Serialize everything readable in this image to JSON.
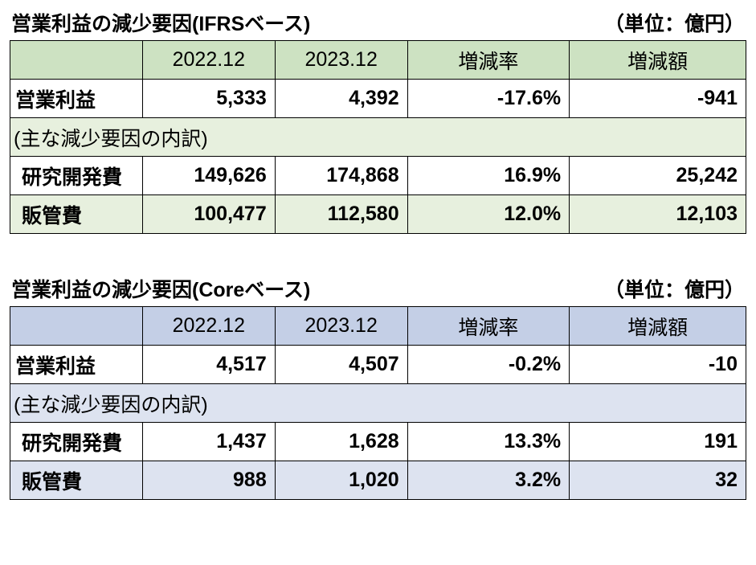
{
  "unit_label": "（単位：億円）",
  "columns": [
    "2022.12",
    "2023.12",
    "増減率",
    "増減額"
  ],
  "subhead_label": "(主な減少要因の内訳)",
  "tables": {
    "ifrs": {
      "title": "営業利益の減少要因(IFRSベース)",
      "header_bg": "#cde2c2",
      "alt_bg": "#e7f0de",
      "rows": {
        "op_profit": {
          "label": "営業利益",
          "y1": "5,333",
          "y2": "4,392",
          "rate": "-17.6%",
          "diff": "-941"
        },
        "rnd": {
          "label": "研究開発費",
          "y1": "149,626",
          "y2": "174,868",
          "rate": "16.9%",
          "diff": "25,242"
        },
        "sga": {
          "label": "販管費",
          "y1": "100,477",
          "y2": "112,580",
          "rate": "12.0%",
          "diff": "12,103"
        }
      }
    },
    "core": {
      "title": "営業利益の減少要因(Coreベース)",
      "header_bg": "#c4cfe6",
      "alt_bg": "#dde3f0",
      "rows": {
        "op_profit": {
          "label": "営業利益",
          "y1": "4,517",
          "y2": "4,507",
          "rate": "-0.2%",
          "diff": "-10"
        },
        "rnd": {
          "label": "研究開発費",
          "y1": "1,437",
          "y2": "1,628",
          "rate": "13.3%",
          "diff": "191"
        },
        "sga": {
          "label": "販管費",
          "y1": "988",
          "y2": "1,020",
          "rate": "3.2%",
          "diff": "32"
        }
      }
    }
  }
}
